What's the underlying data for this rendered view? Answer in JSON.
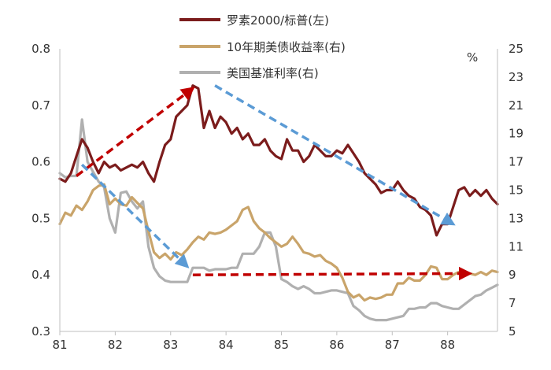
{
  "chart_data": {
    "type": "line",
    "x_ticks": [
      "81",
      "82",
      "83",
      "84",
      "85",
      "86",
      "87",
      "88"
    ],
    "x_range": [
      81.0,
      88.9
    ],
    "y_left": {
      "range": [
        0.3,
        0.8
      ],
      "ticks": [
        "0.3",
        "0.4",
        "0.5",
        "0.6",
        "0.7",
        "0.8"
      ]
    },
    "y_right": {
      "range": [
        5,
        25
      ],
      "unit_label": "%",
      "ticks": [
        "5",
        "7",
        "9",
        "11",
        "13",
        "15",
        "17",
        "19",
        "21",
        "23",
        "25"
      ]
    },
    "legend": [
      {
        "label": "罗素2000/标普(左)",
        "color": "#7B1C1C"
      },
      {
        "label": "10年期美债收益率(右)",
        "color": "#C9A46A"
      },
      {
        "label": "美国基准利率(右)",
        "color": "#B0B0B0"
      }
    ],
    "series": [
      {
        "name": "罗素2000/标普(左)",
        "axis": "left",
        "color": "#7B1C1C",
        "x": [
          81.0,
          81.1,
          81.2,
          81.3,
          81.4,
          81.5,
          81.6,
          81.7,
          81.8,
          81.9,
          82.0,
          82.1,
          82.2,
          82.3,
          82.4,
          82.5,
          82.6,
          82.7,
          82.8,
          82.9,
          83.0,
          83.1,
          83.2,
          83.3,
          83.4,
          83.5,
          83.6,
          83.7,
          83.8,
          83.9,
          84.0,
          84.1,
          84.2,
          84.3,
          84.4,
          84.5,
          84.6,
          84.7,
          84.8,
          84.9,
          85.0,
          85.1,
          85.2,
          85.3,
          85.4,
          85.5,
          85.6,
          85.7,
          85.8,
          85.9,
          86.0,
          86.1,
          86.2,
          86.3,
          86.4,
          86.5,
          86.6,
          86.7,
          86.8,
          86.9,
          87.0,
          87.1,
          87.2,
          87.3,
          87.4,
          87.5,
          87.6,
          87.7,
          87.8,
          87.9,
          88.0,
          88.1,
          88.2,
          88.3,
          88.4,
          88.5,
          88.6,
          88.7,
          88.8,
          88.9
        ],
        "values": [
          0.57,
          0.565,
          0.58,
          0.61,
          0.64,
          0.625,
          0.6,
          0.58,
          0.6,
          0.59,
          0.595,
          0.585,
          0.59,
          0.595,
          0.59,
          0.6,
          0.58,
          0.565,
          0.6,
          0.63,
          0.64,
          0.68,
          0.69,
          0.7,
          0.735,
          0.73,
          0.66,
          0.69,
          0.66,
          0.68,
          0.67,
          0.65,
          0.66,
          0.64,
          0.65,
          0.63,
          0.63,
          0.64,
          0.62,
          0.61,
          0.605,
          0.64,
          0.62,
          0.62,
          0.6,
          0.61,
          0.63,
          0.62,
          0.61,
          0.61,
          0.62,
          0.615,
          0.63,
          0.615,
          0.6,
          0.58,
          0.57,
          0.56,
          0.545,
          0.55,
          0.55,
          0.565,
          0.55,
          0.54,
          0.535,
          0.52,
          0.515,
          0.505,
          0.47,
          0.49,
          0.49,
          0.52,
          0.55,
          0.555,
          0.54,
          0.55,
          0.54,
          0.55,
          0.535,
          0.525
        ]
      },
      {
        "name": "10年期美债收益率(右)",
        "axis": "right",
        "color": "#C9A46A",
        "x": [
          81.0,
          81.1,
          81.2,
          81.3,
          81.4,
          81.5,
          81.6,
          81.7,
          81.8,
          81.9,
          82.0,
          82.1,
          82.2,
          82.3,
          82.4,
          82.5,
          82.6,
          82.7,
          82.8,
          82.9,
          83.0,
          83.1,
          83.2,
          83.3,
          83.4,
          83.5,
          83.6,
          83.7,
          83.8,
          83.9,
          84.0,
          84.1,
          84.2,
          84.3,
          84.4,
          84.5,
          84.6,
          84.7,
          84.8,
          84.9,
          85.0,
          85.1,
          85.2,
          85.3,
          85.4,
          85.5,
          85.6,
          85.7,
          85.8,
          85.9,
          86.0,
          86.1,
          86.2,
          86.3,
          86.4,
          86.5,
          86.6,
          86.7,
          86.8,
          86.9,
          87.0,
          87.1,
          87.2,
          87.3,
          87.4,
          87.5,
          87.6,
          87.7,
          87.8,
          87.9,
          88.0,
          88.1,
          88.2,
          88.3,
          88.4,
          88.5,
          88.6,
          88.7,
          88.8,
          88.9
        ],
        "values": [
          12.6,
          13.4,
          13.2,
          13.9,
          13.6,
          14.2,
          15.0,
          15.3,
          15.4,
          14.0,
          14.4,
          14.0,
          13.9,
          14.5,
          14.1,
          13.7,
          12.1,
          10.6,
          10.2,
          10.5,
          10.1,
          10.6,
          10.4,
          10.8,
          11.3,
          11.7,
          11.5,
          12.0,
          11.9,
          12.0,
          12.2,
          12.5,
          12.8,
          13.6,
          13.8,
          12.8,
          12.3,
          12.0,
          11.6,
          11.3,
          11.0,
          11.2,
          11.7,
          11.2,
          10.6,
          10.5,
          10.3,
          10.4,
          10.0,
          9.8,
          9.5,
          8.8,
          7.8,
          7.4,
          7.6,
          7.2,
          7.4,
          7.3,
          7.4,
          7.6,
          7.6,
          8.4,
          8.4,
          8.8,
          8.6,
          8.6,
          9.0,
          9.6,
          9.5,
          8.7,
          8.7,
          9.0,
          9.2,
          9.0,
          9.1,
          9.0,
          9.2,
          9.0,
          9.3,
          9.2
        ]
      },
      {
        "name": "美国基准利率(右)",
        "axis": "right",
        "color": "#B0B0B0",
        "x": [
          81.0,
          81.1,
          81.2,
          81.3,
          81.4,
          81.5,
          81.6,
          81.7,
          81.8,
          81.9,
          82.0,
          82.1,
          82.2,
          82.3,
          82.4,
          82.5,
          82.6,
          82.7,
          82.8,
          82.9,
          83.0,
          83.1,
          83.2,
          83.3,
          83.4,
          83.5,
          83.6,
          83.7,
          83.8,
          83.9,
          84.0,
          84.1,
          84.2,
          84.3,
          84.4,
          84.5,
          84.6,
          84.7,
          84.8,
          84.9,
          85.0,
          85.1,
          85.2,
          85.3,
          85.4,
          85.5,
          85.6,
          85.7,
          85.8,
          85.9,
          86.0,
          86.1,
          86.2,
          86.3,
          86.4,
          86.5,
          86.6,
          86.7,
          86.8,
          86.9,
          87.0,
          87.1,
          87.2,
          87.3,
          87.4,
          87.5,
          87.6,
          87.7,
          87.8,
          87.9,
          88.0,
          88.1,
          88.2,
          88.3,
          88.4,
          88.5,
          88.6,
          88.7,
          88.8,
          88.9
        ],
        "values": [
          16.2,
          15.9,
          16.0,
          16.0,
          20.0,
          17.0,
          16.3,
          15.6,
          15.2,
          13.0,
          12.0,
          14.8,
          14.9,
          14.2,
          13.7,
          14.2,
          11.0,
          9.5,
          8.9,
          8.6,
          8.5,
          8.5,
          8.5,
          8.5,
          9.5,
          9.5,
          9.5,
          9.3,
          9.4,
          9.4,
          9.4,
          9.5,
          9.5,
          10.5,
          10.5,
          10.5,
          11.0,
          12.0,
          12.0,
          11.0,
          8.7,
          8.5,
          8.2,
          8.0,
          8.2,
          8.0,
          7.7,
          7.7,
          7.8,
          7.9,
          7.9,
          7.8,
          7.7,
          6.8,
          6.5,
          6.1,
          5.9,
          5.8,
          5.8,
          5.8,
          5.9,
          6.0,
          6.1,
          6.6,
          6.6,
          6.7,
          6.7,
          7.0,
          7.0,
          6.8,
          6.7,
          6.6,
          6.6,
          6.9,
          7.2,
          7.5,
          7.6,
          7.9,
          8.1,
          8.3
        ]
      }
    ],
    "annotations": [
      {
        "type": "arrow",
        "style": "dashed",
        "color": "#C00000",
        "axis": "left",
        "from": [
          81.3,
          0.575
        ],
        "to": [
          83.4,
          0.73
        ]
      },
      {
        "type": "arrow",
        "style": "dashed",
        "color": "#5B9BD5",
        "axis": "left",
        "from": [
          83.8,
          0.735
        ],
        "to": [
          88.1,
          0.49
        ]
      },
      {
        "type": "arrow",
        "style": "dashed",
        "color": "#5B9BD5",
        "axis": "right",
        "from": [
          81.4,
          16.8
        ],
        "to": [
          83.3,
          9.6
        ]
      },
      {
        "type": "arrow",
        "style": "dashed",
        "color": "#C00000",
        "axis": "right",
        "from": [
          83.4,
          9.0
        ],
        "to": [
          88.4,
          9.1
        ]
      }
    ]
  }
}
